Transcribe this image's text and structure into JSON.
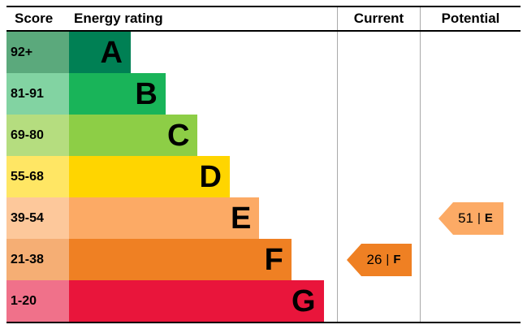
{
  "chart_data": {
    "type": "bar",
    "header": {
      "score": "Score",
      "energy_rating": "Energy rating",
      "current": "Current",
      "potential": "Potential"
    },
    "separator": "|",
    "bands": [
      {
        "letter": "A",
        "score": "92+",
        "bar_color": "#008054",
        "score_bg": "#5ba97c",
        "width_pct": 23
      },
      {
        "letter": "B",
        "score": "81-91",
        "bar_color": "#19b459",
        "score_bg": "#82d3a2",
        "width_pct": 36
      },
      {
        "letter": "C",
        "score": "69-80",
        "bar_color": "#8dce46",
        "score_bg": "#b5dd7f",
        "width_pct": 48
      },
      {
        "letter": "D",
        "score": "55-68",
        "bar_color": "#ffd500",
        "score_bg": "#ffe664",
        "width_pct": 60
      },
      {
        "letter": "E",
        "score": "39-54",
        "bar_color": "#fcaa65",
        "score_bg": "#fdc89b",
        "width_pct": 71
      },
      {
        "letter": "F",
        "score": "21-38",
        "bar_color": "#ef8023",
        "score_bg": "#f5ae74",
        "width_pct": 83
      },
      {
        "letter": "G",
        "score": "1-20",
        "bar_color": "#e9153b",
        "score_bg": "#f0718a",
        "width_pct": 95
      }
    ],
    "current": {
      "value": "26",
      "letter": "F",
      "color": "#ef8023"
    },
    "potential": {
      "value": "51",
      "letter": "E",
      "color": "#fcaa65"
    }
  }
}
